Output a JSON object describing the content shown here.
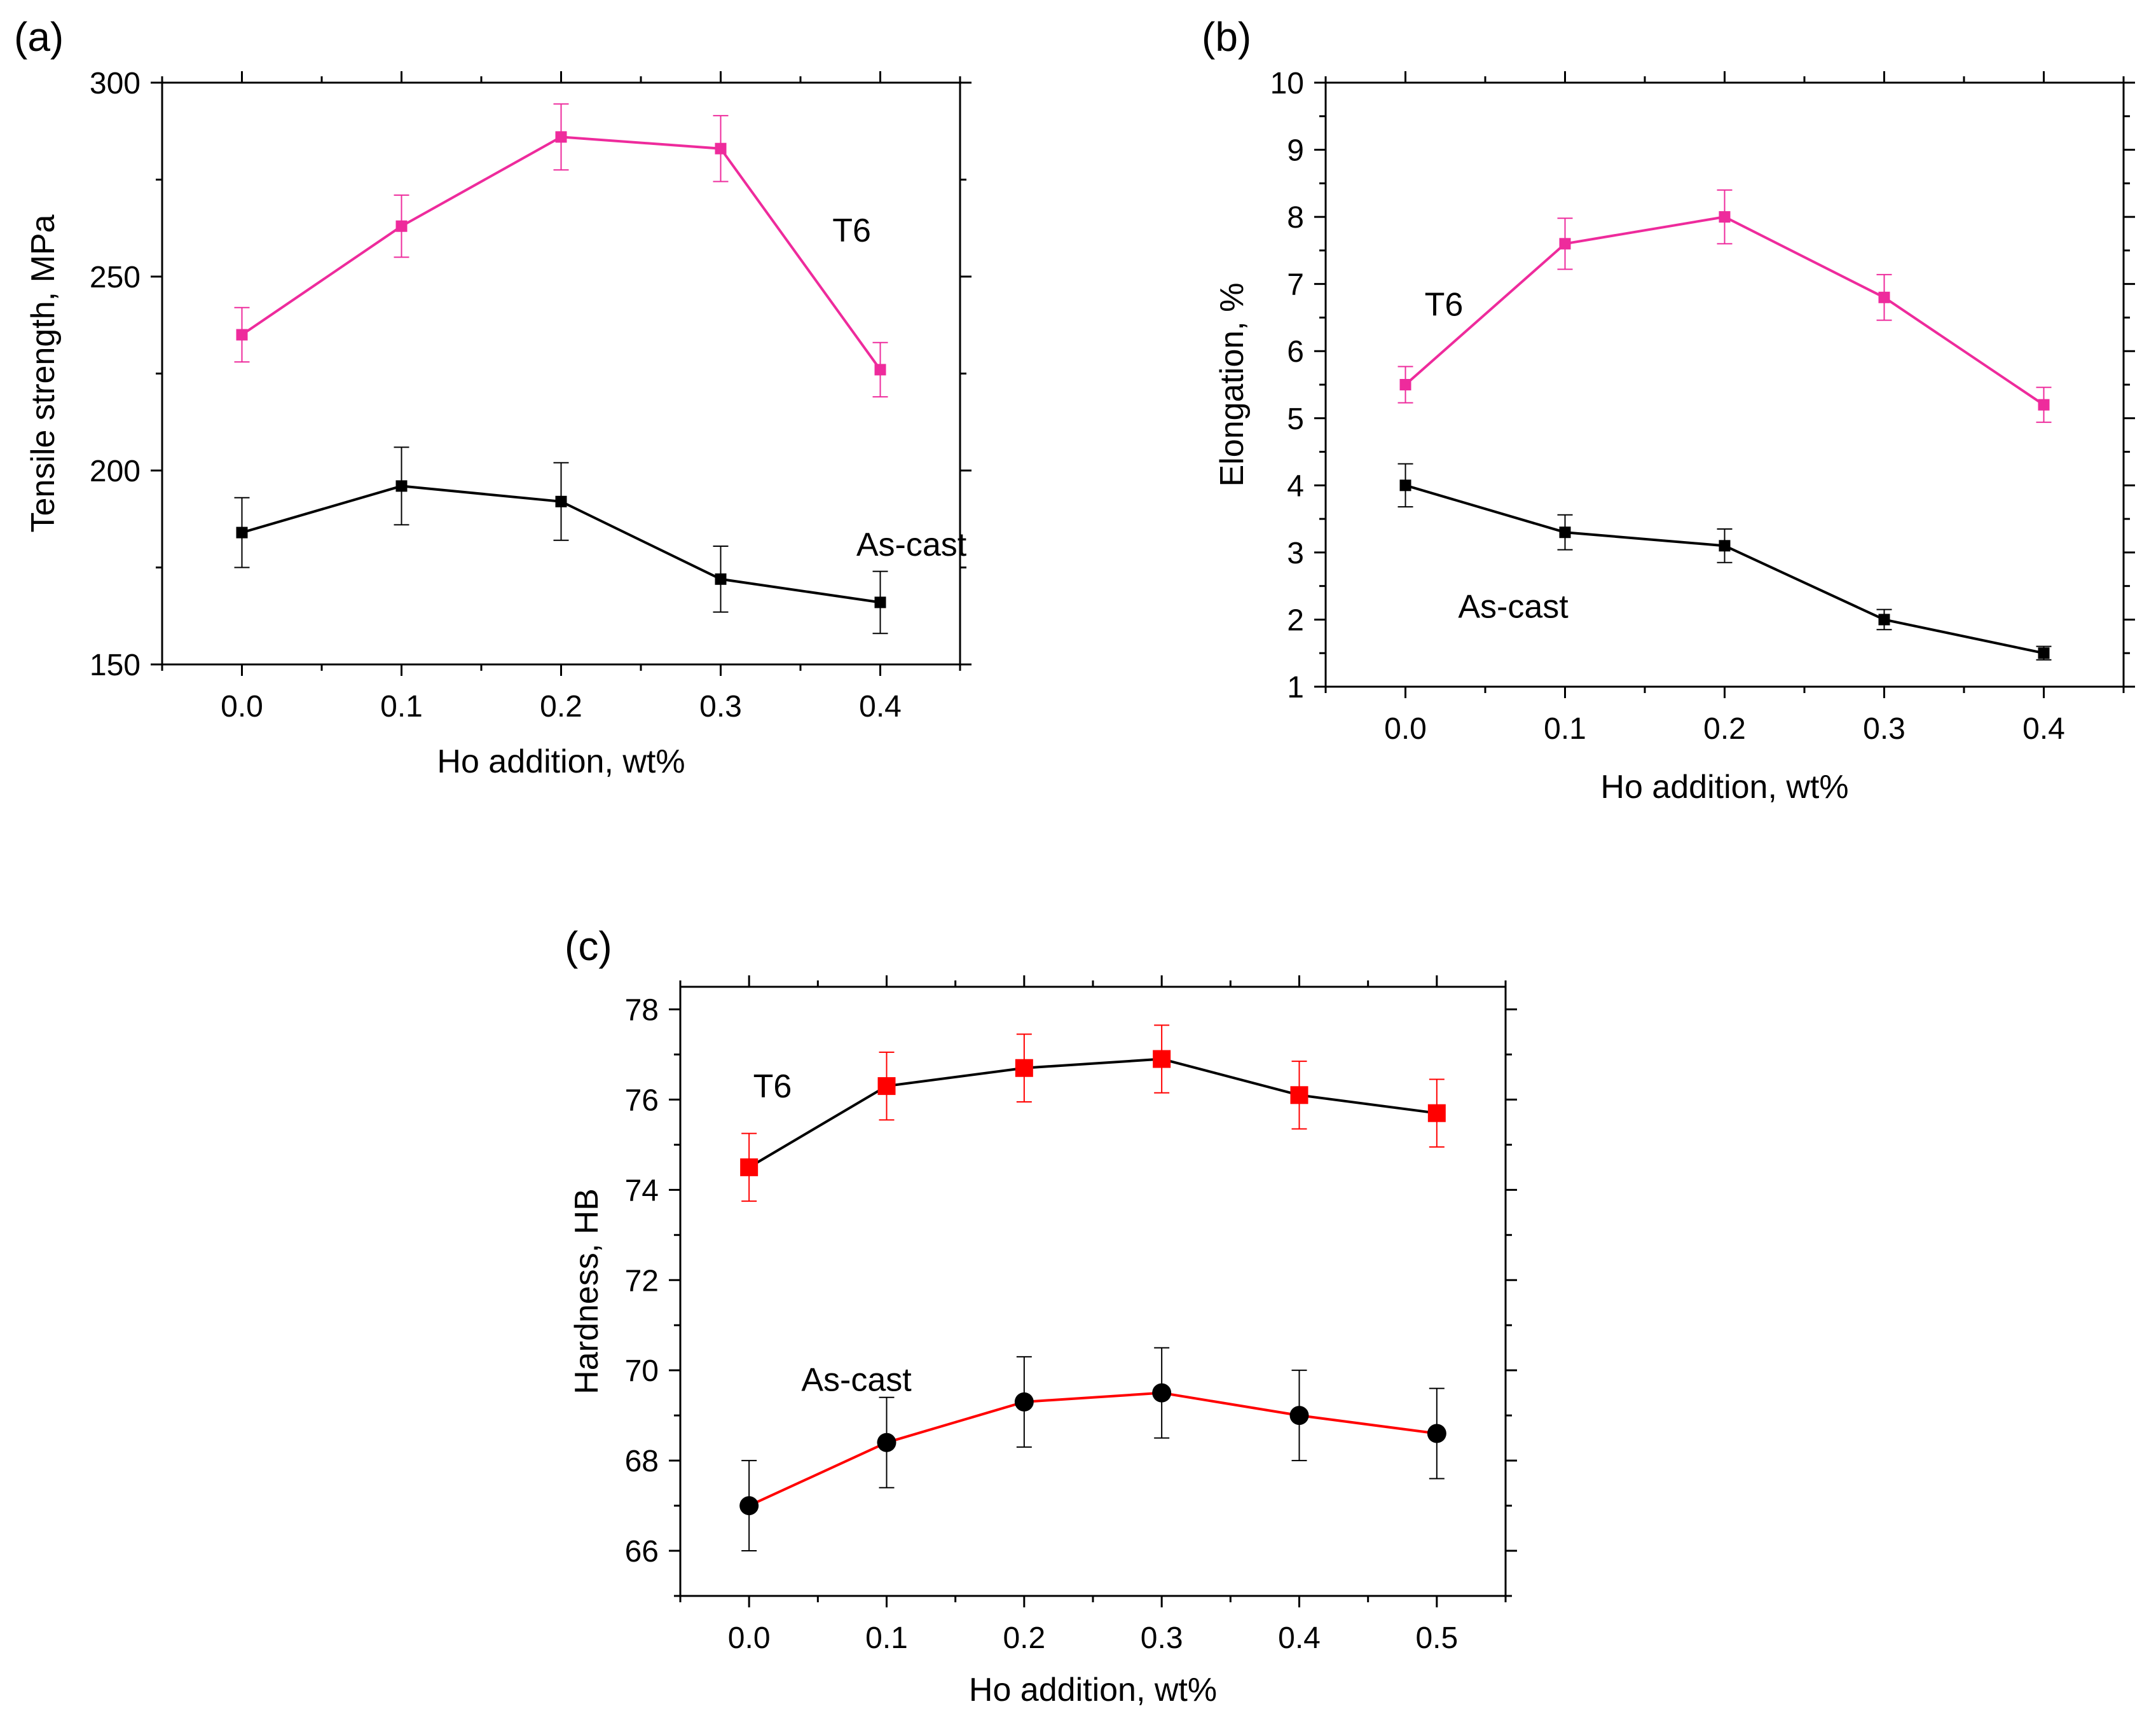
{
  "chart_data": [
    {
      "panel": "(a)",
      "type": "line",
      "xlabel": "Ho addition, wt%",
      "ylabel": "Tensile strength, MPa",
      "xlim": [
        -0.05,
        0.45
      ],
      "ylim": [
        150,
        300
      ],
      "x": [
        0.0,
        0.1,
        0.2,
        0.3,
        0.4
      ],
      "x_tick_labels": [
        "0.0",
        "0.1",
        "0.2",
        "0.3",
        "0.4"
      ],
      "y_ticks": [
        150,
        200,
        250,
        300
      ],
      "y_tick_labels": [
        "150",
        "200",
        "250",
        "300"
      ],
      "series": [
        {
          "name": "T6",
          "color": "#ee2b9c",
          "marker": "square",
          "marker_color": "#ee2b9c",
          "line_color": "#ee2b9c",
          "values": [
            235,
            263,
            286,
            283,
            226
          ],
          "errors": [
            7,
            8,
            8.5,
            8.5,
            7
          ]
        },
        {
          "name": "As-cast",
          "color": "#000000",
          "marker": "square",
          "marker_color": "#000000",
          "line_color": "#000000",
          "values": [
            184,
            196,
            192,
            172,
            166
          ],
          "errors": [
            9,
            10,
            10,
            8.5,
            8
          ]
        }
      ],
      "annotations": [
        {
          "text": "T6",
          "x": 0.37,
          "y": 262
        },
        {
          "text": "As-cast",
          "x": 0.385,
          "y": 181
        }
      ]
    },
    {
      "panel": "(b)",
      "type": "line",
      "xlabel": "Ho addition, wt%",
      "ylabel": "Elongation, %",
      "xlim": [
        -0.05,
        0.45
      ],
      "ylim": [
        1,
        10
      ],
      "x": [
        0.0,
        0.1,
        0.2,
        0.3,
        0.4
      ],
      "x_tick_labels": [
        "0.0",
        "0.1",
        "0.2",
        "0.3",
        "0.4"
      ],
      "y_ticks": [
        1,
        2,
        3,
        4,
        5,
        6,
        7,
        8,
        9,
        10
      ],
      "y_tick_labels": [
        "1",
        "2",
        "3",
        "4",
        "5",
        "6",
        "7",
        "8",
        "9",
        "10"
      ],
      "series": [
        {
          "name": "T6",
          "color": "#ee2b9c",
          "marker": "square",
          "marker_color": "#ee2b9c",
          "line_color": "#ee2b9c",
          "values": [
            5.5,
            7.6,
            8.0,
            6.8,
            5.2
          ],
          "errors": [
            0.27,
            0.38,
            0.4,
            0.34,
            0.26
          ]
        },
        {
          "name": "As-cast",
          "color": "#000000",
          "marker": "square",
          "marker_color": "#000000",
          "line_color": "#000000",
          "values": [
            4.0,
            3.3,
            3.1,
            2.0,
            1.5
          ],
          "errors": [
            0.32,
            0.26,
            0.25,
            0.15,
            0.1
          ]
        }
      ],
      "annotations": [
        {
          "text": "T6",
          "x": 0.012,
          "y": 6.7
        },
        {
          "text": "As-cast",
          "x": 0.033,
          "y": 2.2
        }
      ]
    },
    {
      "panel": "(c)",
      "type": "line",
      "xlabel": "Ho addition, wt%",
      "ylabel": "Hardness, HB",
      "xlim": [
        -0.05,
        0.55
      ],
      "ylim": [
        65,
        78.5
      ],
      "x": [
        0.0,
        0.1,
        0.2,
        0.3,
        0.4,
        0.5
      ],
      "x_tick_labels": [
        "0.0",
        "0.1",
        "0.2",
        "0.3",
        "0.4",
        "0.5"
      ],
      "y_ticks": [
        66,
        68,
        70,
        72,
        74,
        76,
        78
      ],
      "y_tick_labels": [
        "66",
        "68",
        "70",
        "72",
        "74",
        "76",
        "78"
      ],
      "series": [
        {
          "name": "T6",
          "color": "#000000",
          "marker": "square",
          "marker_color": "#ff0000",
          "line_color": "#000000",
          "errorbar_color": "#ff0000",
          "values": [
            74.5,
            76.3,
            76.7,
            76.9,
            76.1,
            75.7
          ],
          "errors": [
            0.75,
            0.75,
            0.75,
            0.75,
            0.75,
            0.75
          ]
        },
        {
          "name": "As-cast",
          "color": "#ff0000",
          "marker": "circle",
          "marker_color": "#000000",
          "line_color": "#ff0000",
          "errorbar_color": "#000000",
          "values": [
            67.0,
            68.4,
            69.3,
            69.5,
            69.0,
            68.6
          ],
          "errors": [
            1.0,
            1.0,
            1.0,
            1.0,
            1.0,
            1.0
          ]
        }
      ],
      "annotations": [
        {
          "text": "T6",
          "x": 0.003,
          "y": 76.3
        },
        {
          "text": "As-cast",
          "x": 0.038,
          "y": 69.8
        }
      ]
    }
  ]
}
